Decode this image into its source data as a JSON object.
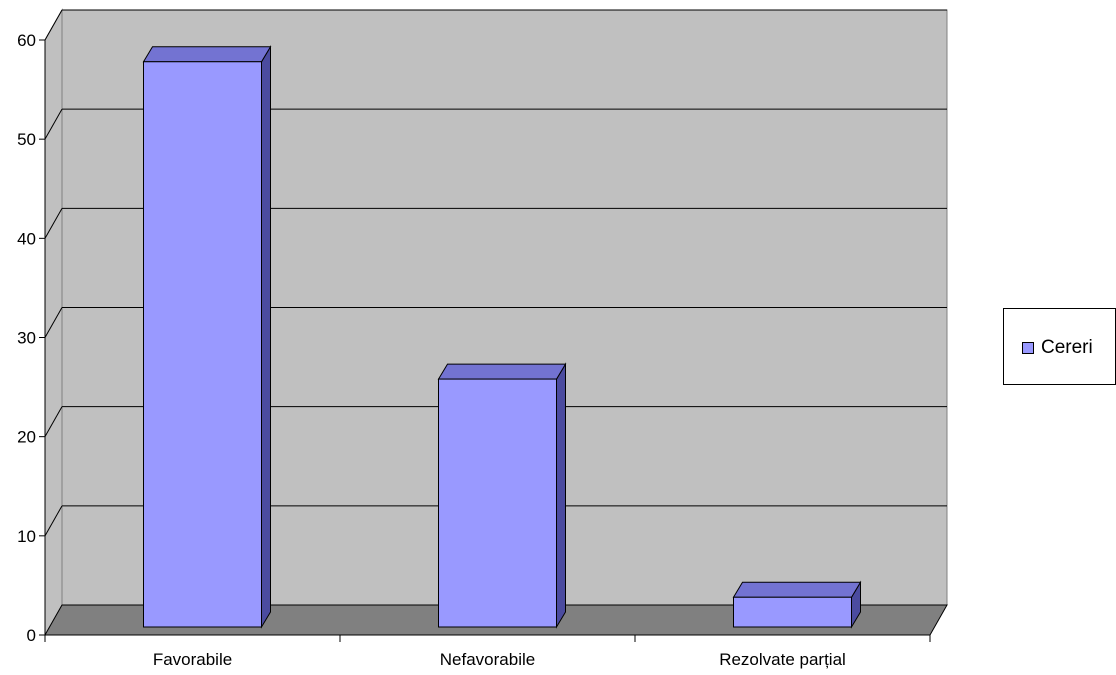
{
  "chart_data": {
    "type": "bar",
    "style": "3d-column",
    "categories": [
      "Favorabile",
      "Nefavorabile",
      "Rezolvate parțial"
    ],
    "series": [
      {
        "name": "Cereri",
        "values": [
          57,
          25,
          3
        ]
      }
    ],
    "ylim": [
      0,
      60
    ],
    "yticks": [
      "0",
      "10",
      "20",
      "30",
      "40",
      "50",
      "60"
    ],
    "title": "",
    "xlabel": "",
    "ylabel": "",
    "grid": true,
    "legend_position": "right",
    "colors": {
      "bar_front": "#9999ff",
      "bar_side": "#4b4b9f",
      "bar_top": "#7373d2",
      "wall": "#c0c0c0",
      "floor": "#808080",
      "gridline": "#000000"
    }
  }
}
